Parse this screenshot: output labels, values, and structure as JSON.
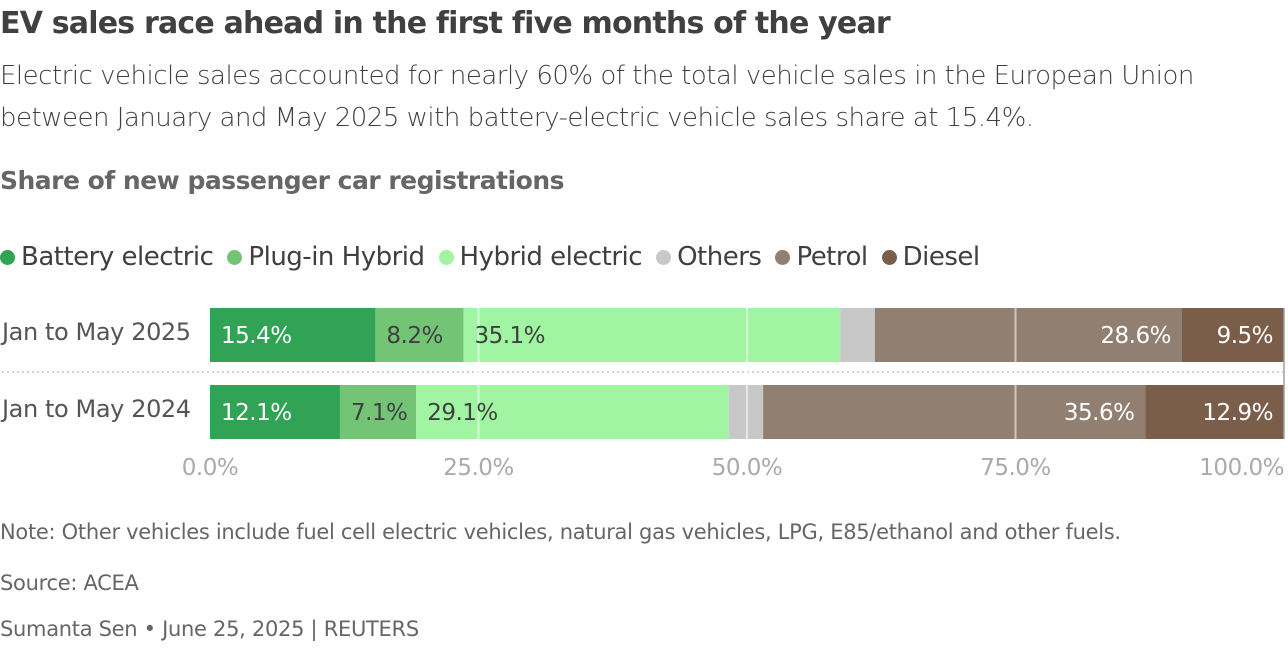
{
  "header": {
    "title": "EV sales race ahead in the first five months of the year",
    "subtitle": "Electric vehicle sales accounted for nearly 60% of the total vehicle sales in the European Union between January and May 2025 with battery-electric vehicle sales share at 15.4%."
  },
  "chart_data": {
    "type": "bar",
    "orientation": "horizontal",
    "stacked": true,
    "title": "Share of new passenger car registrations",
    "categories": [
      "Jan to May 2025",
      "Jan to May 2024"
    ],
    "series": [
      {
        "name": "Battery electric",
        "color": "#31a354",
        "label_color": "#ffffff",
        "values": [
          15.4,
          12.1
        ],
        "labels": [
          "15.4%",
          "12.1%"
        ]
      },
      {
        "name": "Plug-in Hybrid",
        "color": "#74c476",
        "label_color": "#404040",
        "values": [
          8.2,
          7.1
        ],
        "labels": [
          "8.2%",
          "7.1%"
        ]
      },
      {
        "name": "Hybrid electric",
        "color": "#a1f4a1",
        "label_color": "#404040",
        "values": [
          35.1,
          29.1
        ],
        "labels": [
          "35.1%",
          "29.1%"
        ]
      },
      {
        "name": "Others",
        "color": "#c8c8c8",
        "label_color": "#404040",
        "values": [
          3.2,
          3.2
        ],
        "labels": [
          "",
          ""
        ]
      },
      {
        "name": "Petrol",
        "color": "#917f71",
        "label_color": "#ffffff",
        "values": [
          28.6,
          35.6
        ],
        "labels": [
          "28.6%",
          "35.6%"
        ]
      },
      {
        "name": "Diesel",
        "color": "#7b5e4a",
        "label_color": "#ffffff",
        "values": [
          9.5,
          12.9
        ],
        "labels": [
          "9.5%",
          "12.9%"
        ]
      }
    ],
    "xlim": [
      0,
      100
    ],
    "xticks": [
      0,
      25,
      50,
      75,
      100
    ],
    "xtick_labels": [
      "0.0%",
      "25.0%",
      "50.0%",
      "75.0%",
      "100.0%"
    ],
    "grid": true,
    "legend_position": "top-left"
  },
  "footer": {
    "note": "Note: Other vehicles include fuel cell electric vehicles, natural gas vehicles, LPG, E85/ethanol and other fuels.",
    "source": "Source: ACEA",
    "credit": "Sumanta Sen • June 25, 2025 | REUTERS"
  }
}
